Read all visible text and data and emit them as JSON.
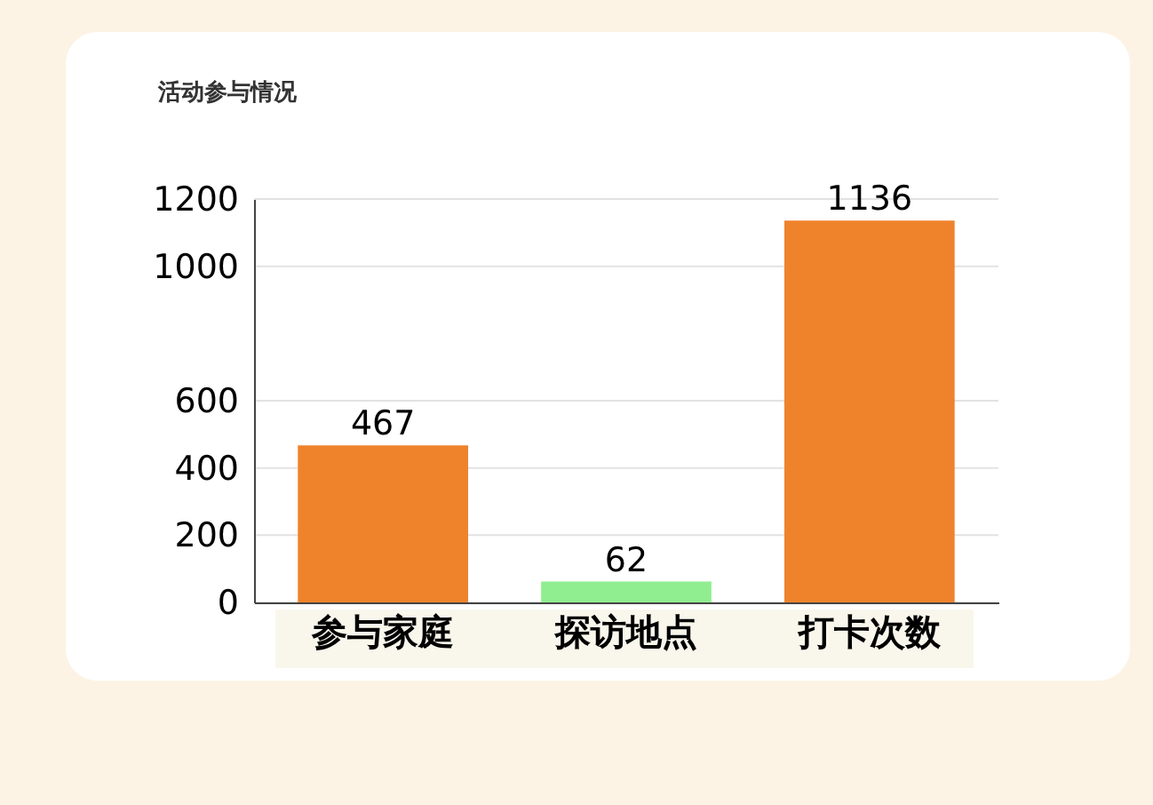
{
  "chart_data": {
    "type": "bar",
    "title": "活动参与情况",
    "categories": [
      "参与家庭",
      "探访地点",
      "打卡次数"
    ],
    "values": [
      467,
      62,
      1136
    ],
    "colors": [
      "#ef832c",
      "#90ee90",
      "#ef832c"
    ],
    "ylim": [
      0,
      1200
    ],
    "yticks": [
      0,
      200,
      400,
      600,
      1000,
      1200
    ],
    "grid": "y",
    "data_labels": true
  }
}
